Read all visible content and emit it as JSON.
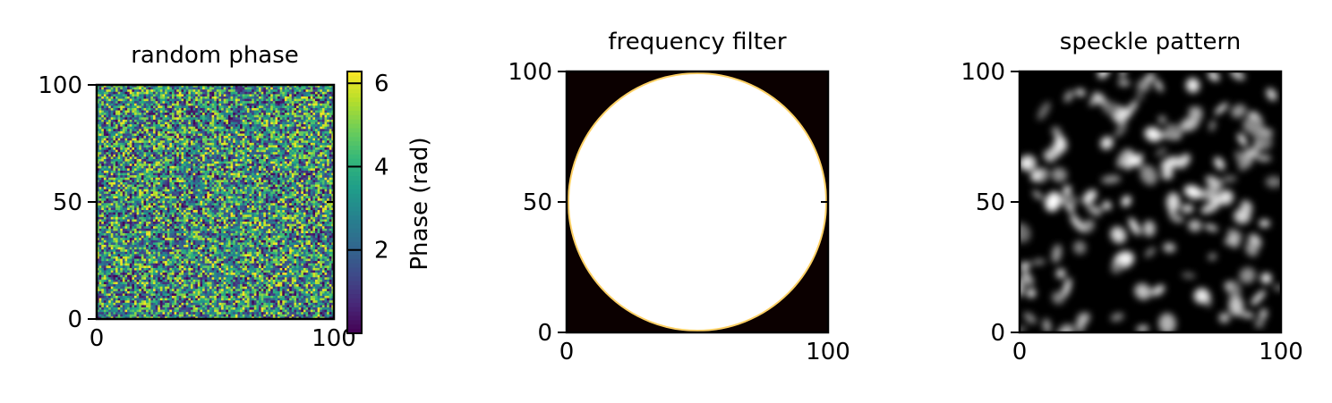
{
  "chart_data": [
    {
      "type": "heatmap",
      "title": "random phase",
      "colormap": "viridis",
      "image_size": [
        101,
        101
      ],
      "xlim": [
        0,
        100
      ],
      "ylim": [
        100,
        0
      ],
      "xticks": [
        0,
        100
      ],
      "yticks": [
        0,
        50,
        100
      ],
      "colorbar": {
        "label": "Phase (rad)",
        "range": [
          0,
          6.283
        ],
        "ticks": [
          2,
          4,
          6
        ]
      }
    },
    {
      "type": "heatmap",
      "title": "frequency filter",
      "colormap": "hot",
      "image_size": [
        101,
        101
      ],
      "xlim": [
        0,
        100
      ],
      "ylim": [
        100,
        0
      ],
      "xticks": [
        0,
        100
      ],
      "yticks": [
        0,
        50,
        100
      ],
      "mask": {
        "shape": "circle",
        "center": [
          50,
          50
        ],
        "radius": 50
      }
    },
    {
      "type": "heatmap",
      "title": "speckle pattern",
      "colormap": "gray",
      "image_size": [
        101,
        101
      ],
      "xlim": [
        0,
        100
      ],
      "ylim": [
        100,
        0
      ],
      "xticks": [
        0,
        100
      ],
      "yticks": [
        0,
        50,
        100
      ]
    }
  ]
}
